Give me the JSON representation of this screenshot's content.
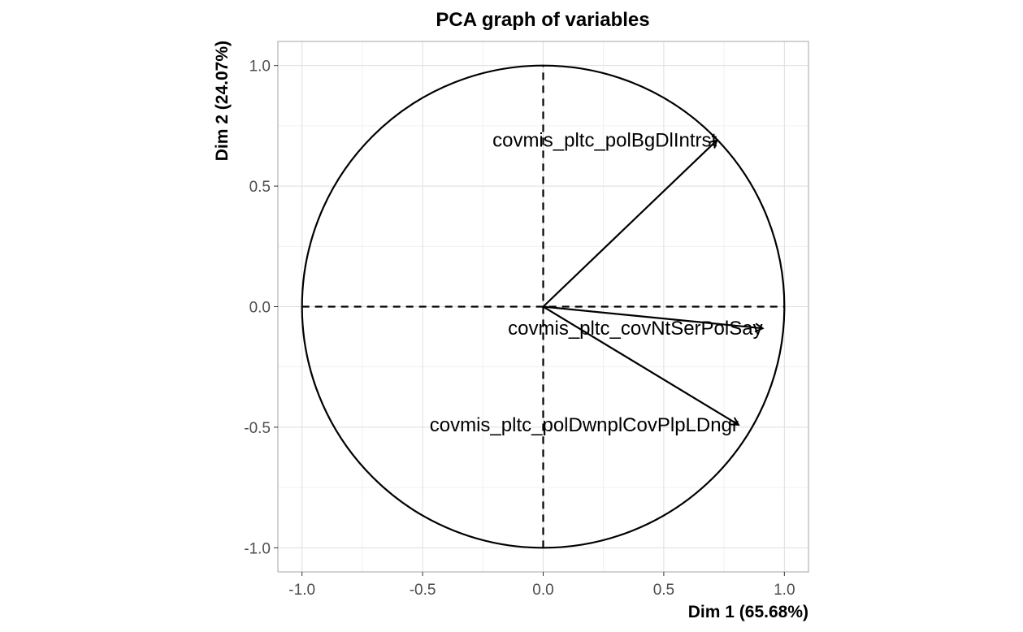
{
  "chart_data": {
    "type": "scatter",
    "subtype": "pca-correlation-circle",
    "title": "PCA graph of variables",
    "xlabel": "Dim 1 (65.68%)",
    "ylabel": "Dim 2 (24.07%)",
    "xlim": [
      -1.1,
      1.1
    ],
    "ylim": [
      -1.1,
      1.1
    ],
    "x_ticks": [
      -1.0,
      -0.5,
      0.0,
      0.5,
      1.0
    ],
    "y_ticks": [
      -1.0,
      -0.5,
      0.0,
      0.5,
      1.0
    ],
    "x_tick_labels": [
      "-1.0",
      "-0.5",
      "0.0",
      "0.5",
      "1.0"
    ],
    "y_tick_labels": [
      "-1.0",
      "-0.5",
      "0.0",
      "0.5",
      "1.0"
    ],
    "grid": true,
    "unit_circle": true,
    "variables": [
      {
        "label": "covmis_pltc_polBgDlIntrst",
        "x": 0.72,
        "y": 0.69
      },
      {
        "label": "covmis_pltc_covNtSerPolSay",
        "x": 0.91,
        "y": -0.09
      },
      {
        "label": "covmis_pltc_polDwnplCovPlpLDngr",
        "x": 0.81,
        "y": -0.49
      }
    ]
  }
}
